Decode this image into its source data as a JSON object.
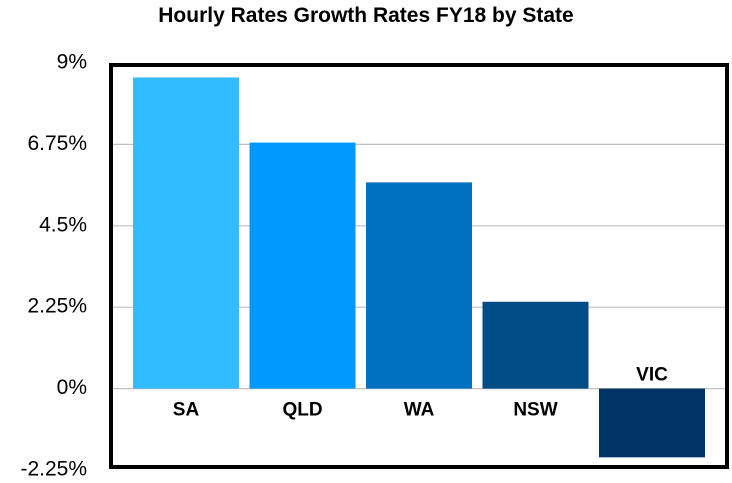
{
  "chart_data": {
    "type": "bar",
    "title": "Hourly Rates Growth Rates FY18 by State",
    "xlabel": "",
    "ylabel": "",
    "categories": [
      "SA",
      "QLD",
      "WA",
      "NSW",
      "VIC"
    ],
    "values": [
      8.6,
      6.8,
      5.7,
      2.4,
      -1.9
    ],
    "colors": [
      "#33BBFF",
      "#0099FF",
      "#0070C0",
      "#004C87",
      "#003366"
    ],
    "ylim": [
      -2.25,
      9
    ],
    "yticks": [
      9,
      6.75,
      4.5,
      2.25,
      0,
      -2.25
    ],
    "ytick_labels": [
      "9%",
      "6.75%",
      "4.5%",
      "2.25%",
      "0%",
      "-2.25%"
    ],
    "grid": true,
    "legend": "none"
  }
}
